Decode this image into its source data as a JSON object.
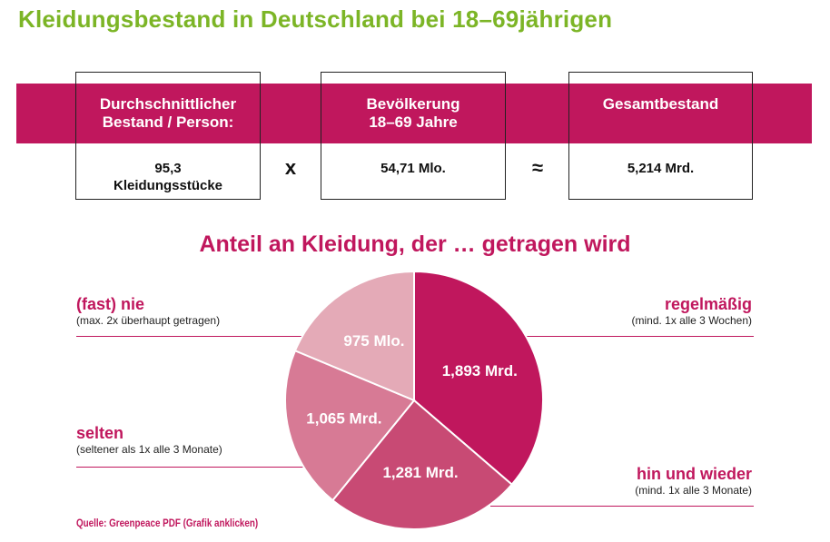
{
  "title": "Kleidungsbestand in Deutschland bei 18–69jährigen",
  "equation": {
    "boxes": [
      {
        "header": [
          "Durchschnittlicher",
          "Bestand / Person:"
        ],
        "value": [
          "95,3",
          "Kleidungsstücke"
        ]
      },
      {
        "header": [
          "Bevölkerung",
          "18–69 Jahre"
        ],
        "value": [
          "54,71 Mlo."
        ]
      },
      {
        "header": [
          "Gesamtbestand"
        ],
        "value": [
          "5,214 Mrd."
        ]
      }
    ],
    "operators": [
      "x",
      "≈"
    ]
  },
  "colors": {
    "title_green": "#7cb526",
    "accent": "#c0175d",
    "slices": [
      "#c0175d",
      "#c84a74",
      "#d77a95",
      "#e4aab7"
    ]
  },
  "chart_data": {
    "type": "pie",
    "title": "Anteil an Kleidung, der … getragen wird",
    "slices": [
      {
        "category": "regelmäßig",
        "description": "(mind. 1x alle 3 Wochen)",
        "value": 1.893,
        "label": "1,893 Mrd."
      },
      {
        "category": "hin und wieder",
        "description": "(mind. 1x alle 3 Monate)",
        "value": 1.281,
        "label": "1,281 Mrd."
      },
      {
        "category": "selten",
        "description": "(seltener als 1x alle 3 Monate)",
        "value": 1.065,
        "label": "1,065 Mrd."
      },
      {
        "category": "(fast) nie",
        "description": "(max. 2x überhaupt getragen)",
        "value": 0.975,
        "label": "975 Mlo."
      }
    ]
  },
  "source": "Quelle: Greenpeace PDF (Grafik anklicken)"
}
